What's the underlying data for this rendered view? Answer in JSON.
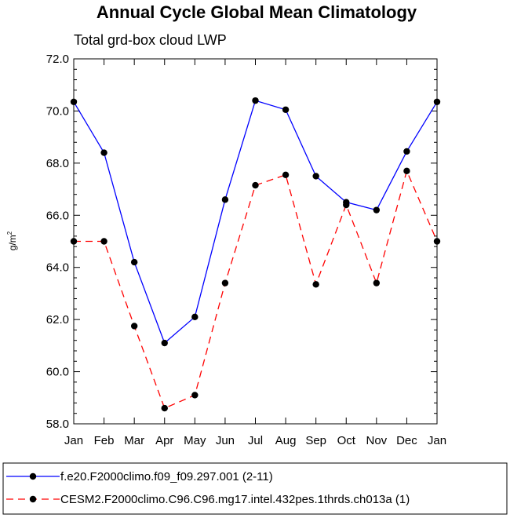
{
  "chart_data": {
    "type": "line",
    "title": "Annual Cycle Global Mean Climatology",
    "subtitle": "Total grd-box cloud LWP",
    "ylabel": "g/m",
    "ylabel_superscript": "2",
    "ylim": [
      58.0,
      72.0
    ],
    "yticks": [
      "58.0",
      "60.0",
      "62.0",
      "64.0",
      "66.0",
      "68.0",
      "70.0",
      "72.0"
    ],
    "categories": [
      "Jan",
      "Feb",
      "Mar",
      "Apr",
      "May",
      "Jun",
      "Jul",
      "Aug",
      "Sep",
      "Oct",
      "Nov",
      "Dec",
      "Jan"
    ],
    "legend_position": "bottom",
    "series": [
      {
        "name": "f.e20.F2000climo.f09_f09.297.001 (2-11)",
        "color": "#0000ff",
        "line_style": "solid",
        "values": [
          70.35,
          68.4,
          64.2,
          61.1,
          62.1,
          66.6,
          70.4,
          70.05,
          67.5,
          66.5,
          66.2,
          68.45,
          70.35
        ]
      },
      {
        "name": "CESM2.F2000climo.C96.C96.mg17.intel.432pes.1thrds.ch013a (1)",
        "color": "#ff0000",
        "line_style": "dashed",
        "values": [
          65.0,
          65.0,
          61.75,
          58.6,
          59.1,
          63.4,
          67.15,
          67.55,
          63.35,
          66.4,
          63.4,
          67.7,
          65.0
        ]
      }
    ]
  }
}
